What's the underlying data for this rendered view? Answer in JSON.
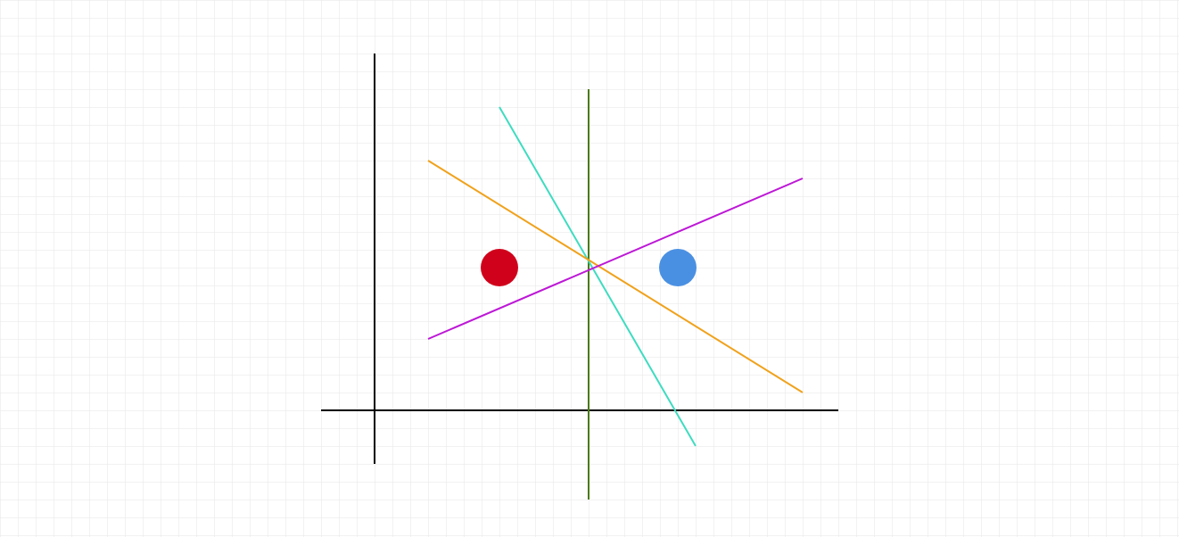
{
  "background": {
    "color": "#ffffff",
    "grid_color": "#e6e6e6"
  },
  "axes": {
    "color": "#000000"
  },
  "lines": [
    {
      "name": "green-vertical-line",
      "color": "#4b7a12"
    },
    {
      "name": "cyan-line",
      "color": "#3edcc0"
    },
    {
      "name": "orange-line",
      "color": "#f0a21c"
    },
    {
      "name": "purple-line",
      "color": "#bd18d6"
    }
  ],
  "points": [
    {
      "name": "red-point",
      "color": "#d0021b"
    },
    {
      "name": "blue-point",
      "color": "#4a90e2"
    }
  ]
}
